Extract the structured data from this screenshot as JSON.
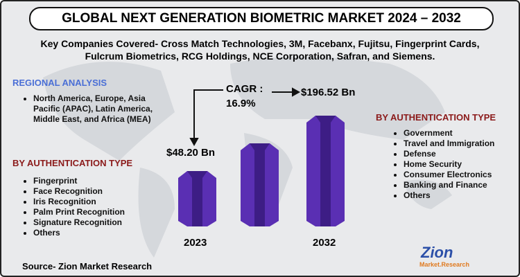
{
  "header": {
    "title": "GLOBAL NEXT GENERATION BIOMETRIC MARKET 2024 – 2032"
  },
  "companies": [
    "Key Companies Covered- Cross Match Technologies, 3M, Facebanx, Fujitsu, Fingerprint Cards,",
    "Fulcrum Biometrics, RCG Holdings, NCE Corporation, Safran, and Siemens."
  ],
  "regional": {
    "heading": "REGIONAL ANALYSIS",
    "items": [
      "North America, Europe, Asia Pacific (APAC), Latin America, Middle East, and Africa (MEA)"
    ]
  },
  "auth_left": {
    "heading": "BY AUTHENTICATION TYPE",
    "items": [
      "Fingerprint",
      "Face Recognition",
      "Iris Recognition",
      "Palm Print Recognition",
      "Signature Recognition",
      "Others"
    ]
  },
  "auth_right": {
    "heading": "BY AUTHENTICATION TYPE",
    "items": [
      "Government",
      "Travel and Immigration",
      "Defense",
      "Home Security",
      "Consumer Electronics",
      "Banking and Finance",
      "Others"
    ]
  },
  "center": {
    "cagr_label": "CAGR :",
    "cagr_value": "16.9%",
    "start_value": "$48.20 Bn",
    "end_value": "$196.52 Bn",
    "start_year": "2023",
    "end_year": "2032"
  },
  "source": "Source- Zion Market Research",
  "logo": {
    "name": "Zion",
    "sub": "Market.Research"
  }
}
